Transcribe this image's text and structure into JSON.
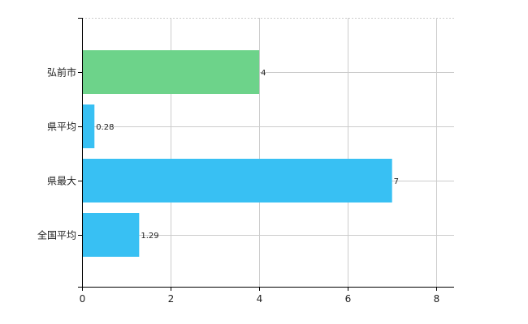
{
  "chart_data": {
    "type": "bar",
    "orientation": "horizontal",
    "categories": [
      "弘前市",
      "県平均",
      "県最大",
      "全国平均"
    ],
    "values": [
      4,
      0.28,
      7,
      1.29
    ],
    "value_labels": [
      "4",
      "0.28",
      "7",
      "1.29"
    ],
    "bar_colors": [
      "#6dd38a",
      "#38c0f3",
      "#38c0f3",
      "#38c0f3"
    ],
    "xlim": [
      0,
      8.4
    ],
    "x_ticks": [
      0,
      2,
      4,
      6,
      8
    ],
    "x_tick_labels": [
      "0",
      "2",
      "4",
      "6",
      "8"
    ],
    "grid": true,
    "title": "",
    "xlabel": "",
    "ylabel": ""
  }
}
